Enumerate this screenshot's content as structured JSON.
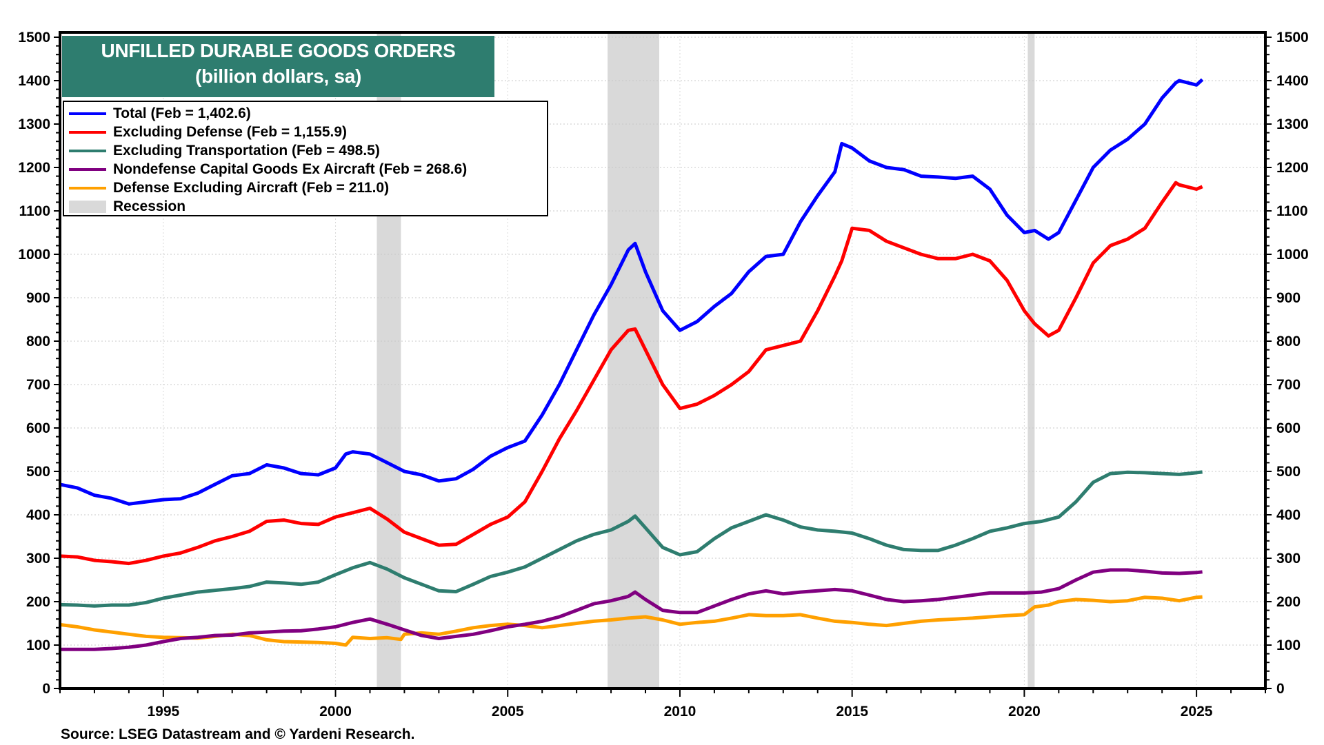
{
  "chart_data": {
    "type": "line",
    "title": "UNFILLED DURABLE GOODS ORDERS",
    "subtitle": "(billion dollars, sa)",
    "xlabel": "",
    "ylabel": "",
    "xlim": [
      1992.0,
      2027.0
    ],
    "ylim": [
      0,
      1500
    ],
    "yticks": [
      0,
      100,
      200,
      300,
      400,
      500,
      600,
      700,
      800,
      900,
      1000,
      1100,
      1200,
      1300,
      1400,
      1500
    ],
    "xticks": [
      1995,
      2000,
      2005,
      2010,
      2015,
      2020,
      2025
    ],
    "grid": true,
    "legend_position": "top-left",
    "recessions": [
      {
        "start": 2001.2,
        "end": 2001.9
      },
      {
        "start": 2007.9,
        "end": 2009.4
      },
      {
        "start": 2020.1,
        "end": 2020.3
      }
    ],
    "series": [
      {
        "name": "Total (Feb = 1,402.6)",
        "color": "#0000ff",
        "x": [
          1992.0,
          1992.5,
          1993.0,
          1993.5,
          1994.0,
          1994.5,
          1995.0,
          1995.5,
          1996.0,
          1996.5,
          1997.0,
          1997.5,
          1998.0,
          1998.5,
          1999.0,
          1999.5,
          2000.0,
          2000.3,
          2000.5,
          2001.0,
          2001.5,
          2002.0,
          2002.5,
          2003.0,
          2003.5,
          2004.0,
          2004.5,
          2005.0,
          2005.5,
          2006.0,
          2006.5,
          2007.0,
          2007.5,
          2008.0,
          2008.5,
          2008.7,
          2009.0,
          2009.5,
          2010.0,
          2010.5,
          2011.0,
          2011.5,
          2012.0,
          2012.5,
          2013.0,
          2013.5,
          2014.0,
          2014.5,
          2014.7,
          2015.0,
          2015.5,
          2016.0,
          2016.5,
          2017.0,
          2017.5,
          2018.0,
          2018.5,
          2019.0,
          2019.5,
          2020.0,
          2020.3,
          2020.7,
          2021.0,
          2021.5,
          2022.0,
          2022.5,
          2023.0,
          2023.5,
          2024.0,
          2024.4,
          2024.5,
          2025.0,
          2025.17
        ],
        "values": [
          470,
          462,
          445,
          438,
          425,
          430,
          435,
          437,
          450,
          470,
          490,
          495,
          515,
          508,
          495,
          492,
          508,
          540,
          545,
          540,
          520,
          500,
          492,
          478,
          483,
          505,
          535,
          555,
          570,
          630,
          700,
          780,
          860,
          930,
          1010,
          1025,
          960,
          870,
          825,
          845,
          880,
          910,
          960,
          995,
          1000,
          1075,
          1135,
          1190,
          1255,
          1245,
          1215,
          1200,
          1195,
          1180,
          1178,
          1175,
          1180,
          1150,
          1090,
          1050,
          1055,
          1035,
          1050,
          1125,
          1200,
          1240,
          1265,
          1300,
          1360,
          1395,
          1400,
          1390,
          1402.6
        ]
      },
      {
        "name": "Excluding Defense (Feb = 1,155.9)",
        "color": "#ff0000",
        "x": [
          1992.0,
          1992.5,
          1993.0,
          1993.5,
          1994.0,
          1994.5,
          1995.0,
          1995.5,
          1996.0,
          1996.5,
          1997.0,
          1997.5,
          1998.0,
          1998.5,
          1999.0,
          1999.5,
          2000.0,
          2000.5,
          2001.0,
          2001.5,
          2002.0,
          2002.5,
          2003.0,
          2003.5,
          2004.0,
          2004.5,
          2005.0,
          2005.5,
          2006.0,
          2006.5,
          2007.0,
          2007.5,
          2008.0,
          2008.5,
          2008.7,
          2009.0,
          2009.5,
          2010.0,
          2010.5,
          2011.0,
          2011.5,
          2012.0,
          2012.5,
          2013.0,
          2013.5,
          2014.0,
          2014.5,
          2014.7,
          2015.0,
          2015.5,
          2016.0,
          2016.5,
          2017.0,
          2017.5,
          2018.0,
          2018.5,
          2019.0,
          2019.5,
          2020.0,
          2020.3,
          2020.7,
          2021.0,
          2021.5,
          2022.0,
          2022.5,
          2023.0,
          2023.5,
          2024.0,
          2024.4,
          2024.5,
          2025.0,
          2025.17
        ],
        "values": [
          305,
          303,
          295,
          292,
          288,
          295,
          305,
          312,
          325,
          340,
          350,
          362,
          385,
          388,
          380,
          378,
          395,
          405,
          415,
          390,
          360,
          345,
          330,
          332,
          355,
          378,
          395,
          430,
          500,
          575,
          640,
          710,
          780,
          825,
          828,
          780,
          700,
          645,
          655,
          675,
          700,
          730,
          780,
          790,
          800,
          870,
          950,
          985,
          1060,
          1055,
          1030,
          1015,
          1000,
          990,
          990,
          1000,
          985,
          940,
          870,
          840,
          812,
          825,
          900,
          980,
          1020,
          1035,
          1060,
          1120,
          1165,
          1160,
          1150,
          1155.9
        ]
      },
      {
        "name": "Excluding Transportation (Feb = 498.5)",
        "color": "#2e7d6f",
        "x": [
          1992.0,
          1992.5,
          1993.0,
          1993.5,
          1994.0,
          1994.5,
          1995.0,
          1995.5,
          1996.0,
          1996.5,
          1997.0,
          1997.5,
          1998.0,
          1998.5,
          1999.0,
          1999.5,
          2000.0,
          2000.5,
          2001.0,
          2001.5,
          2002.0,
          2002.5,
          2003.0,
          2003.5,
          2004.0,
          2004.5,
          2005.0,
          2005.5,
          2006.0,
          2006.5,
          2007.0,
          2007.5,
          2008.0,
          2008.5,
          2008.7,
          2009.0,
          2009.5,
          2010.0,
          2010.5,
          2011.0,
          2011.5,
          2012.0,
          2012.5,
          2013.0,
          2013.5,
          2014.0,
          2014.5,
          2015.0,
          2015.5,
          2016.0,
          2016.5,
          2017.0,
          2017.5,
          2018.0,
          2018.5,
          2019.0,
          2019.5,
          2020.0,
          2020.5,
          2021.0,
          2021.5,
          2022.0,
          2022.5,
          2023.0,
          2023.5,
          2024.0,
          2024.5,
          2025.0,
          2025.17
        ],
        "values": [
          193,
          192,
          190,
          192,
          192,
          198,
          208,
          215,
          222,
          226,
          230,
          235,
          245,
          243,
          240,
          245,
          262,
          278,
          290,
          275,
          255,
          240,
          225,
          223,
          240,
          258,
          268,
          280,
          300,
          320,
          340,
          355,
          365,
          385,
          397,
          370,
          325,
          308,
          315,
          345,
          370,
          385,
          400,
          388,
          372,
          365,
          362,
          358,
          345,
          330,
          320,
          318,
          318,
          330,
          345,
          362,
          370,
          380,
          385,
          395,
          430,
          475,
          495,
          498,
          497,
          495,
          493,
          497,
          498.5
        ]
      },
      {
        "name": "Nondefense Capital Goods Ex Aircraft  (Feb = 268.6)",
        "color": "#800080",
        "x": [
          1992.0,
          1992.5,
          1993.0,
          1993.5,
          1994.0,
          1994.5,
          1995.0,
          1995.5,
          1996.0,
          1996.5,
          1997.0,
          1997.5,
          1998.0,
          1998.5,
          1999.0,
          1999.5,
          2000.0,
          2000.5,
          2001.0,
          2001.5,
          2002.0,
          2002.5,
          2003.0,
          2003.5,
          2004.0,
          2004.5,
          2005.0,
          2005.5,
          2006.0,
          2006.5,
          2007.0,
          2007.5,
          2008.0,
          2008.5,
          2008.7,
          2009.0,
          2009.5,
          2010.0,
          2010.5,
          2011.0,
          2011.5,
          2012.0,
          2012.5,
          2013.0,
          2013.5,
          2014.0,
          2014.5,
          2015.0,
          2015.5,
          2016.0,
          2016.5,
          2017.0,
          2017.5,
          2018.0,
          2018.5,
          2019.0,
          2019.5,
          2020.0,
          2020.5,
          2021.0,
          2021.5,
          2022.0,
          2022.5,
          2023.0,
          2023.5,
          2024.0,
          2024.5,
          2025.0,
          2025.17
        ],
        "values": [
          90,
          90,
          90,
          92,
          95,
          100,
          108,
          115,
          118,
          122,
          123,
          128,
          130,
          132,
          133,
          137,
          142,
          152,
          160,
          148,
          135,
          122,
          115,
          120,
          125,
          133,
          142,
          148,
          155,
          165,
          180,
          195,
          202,
          212,
          222,
          205,
          180,
          175,
          175,
          190,
          205,
          218,
          225,
          218,
          222,
          225,
          228,
          225,
          215,
          205,
          200,
          202,
          205,
          210,
          215,
          220,
          220,
          220,
          222,
          230,
          250,
          268,
          273,
          273,
          270,
          266,
          265,
          267,
          268.6
        ]
      },
      {
        "name": "Defense Excluding Aircraft (Feb = 211.0)",
        "color": "#ffa000",
        "x": [
          1992.0,
          1992.5,
          1993.0,
          1993.5,
          1994.0,
          1994.5,
          1995.0,
          1995.5,
          1996.0,
          1996.5,
          1997.0,
          1997.5,
          1998.0,
          1998.5,
          1999.0,
          1999.5,
          2000.0,
          2000.3,
          2000.5,
          2001.0,
          2001.5,
          2001.9,
          2002.0,
          2002.5,
          2003.0,
          2003.5,
          2004.0,
          2004.5,
          2005.0,
          2005.5,
          2006.0,
          2006.5,
          2007.0,
          2007.5,
          2008.0,
          2008.5,
          2009.0,
          2009.5,
          2010.0,
          2010.5,
          2011.0,
          2011.5,
          2012.0,
          2012.5,
          2013.0,
          2013.5,
          2014.0,
          2014.5,
          2015.0,
          2015.5,
          2016.0,
          2016.5,
          2017.0,
          2017.5,
          2018.0,
          2018.5,
          2019.0,
          2019.5,
          2020.0,
          2020.3,
          2020.7,
          2021.0,
          2021.5,
          2022.0,
          2022.5,
          2023.0,
          2023.5,
          2024.0,
          2024.5,
          2025.0,
          2025.17
        ],
        "values": [
          147,
          142,
          135,
          130,
          125,
          120,
          118,
          117,
          116,
          120,
          125,
          122,
          112,
          108,
          107,
          106,
          104,
          100,
          118,
          115,
          117,
          113,
          125,
          128,
          125,
          132,
          140,
          145,
          148,
          145,
          140,
          145,
          150,
          155,
          158,
          162,
          165,
          158,
          148,
          152,
          155,
          162,
          170,
          168,
          168,
          170,
          162,
          155,
          152,
          148,
          145,
          150,
          155,
          158,
          160,
          162,
          165,
          168,
          170,
          188,
          192,
          200,
          205,
          203,
          200,
          202,
          210,
          208,
          202,
          210,
          211
        ]
      }
    ]
  },
  "title": {
    "line1": "UNFILLED DURABLE GOODS ORDERS",
    "line2": "(billion dollars, sa)"
  },
  "legend": [
    {
      "label": "Total (Feb = 1,402.6)",
      "color": "#0000ff",
      "kind": "line"
    },
    {
      "label": "Excluding Defense (Feb = 1,155.9)",
      "color": "#ff0000",
      "kind": "line"
    },
    {
      "label": "Excluding Transportation (Feb = 498.5)",
      "color": "#2e7d6f",
      "kind": "line"
    },
    {
      "label": "Nondefense Capital Goods Ex Aircraft  (Feb = 268.6)",
      "color": "#800080",
      "kind": "line"
    },
    {
      "label": "Defense Excluding Aircraft (Feb = 211.0)",
      "color": "#ffa000",
      "kind": "line"
    },
    {
      "label": "Recession",
      "color": "#d9d9d9",
      "kind": "rect"
    }
  ],
  "source": "Source: LSEG Datastream and © Yardeni Research."
}
